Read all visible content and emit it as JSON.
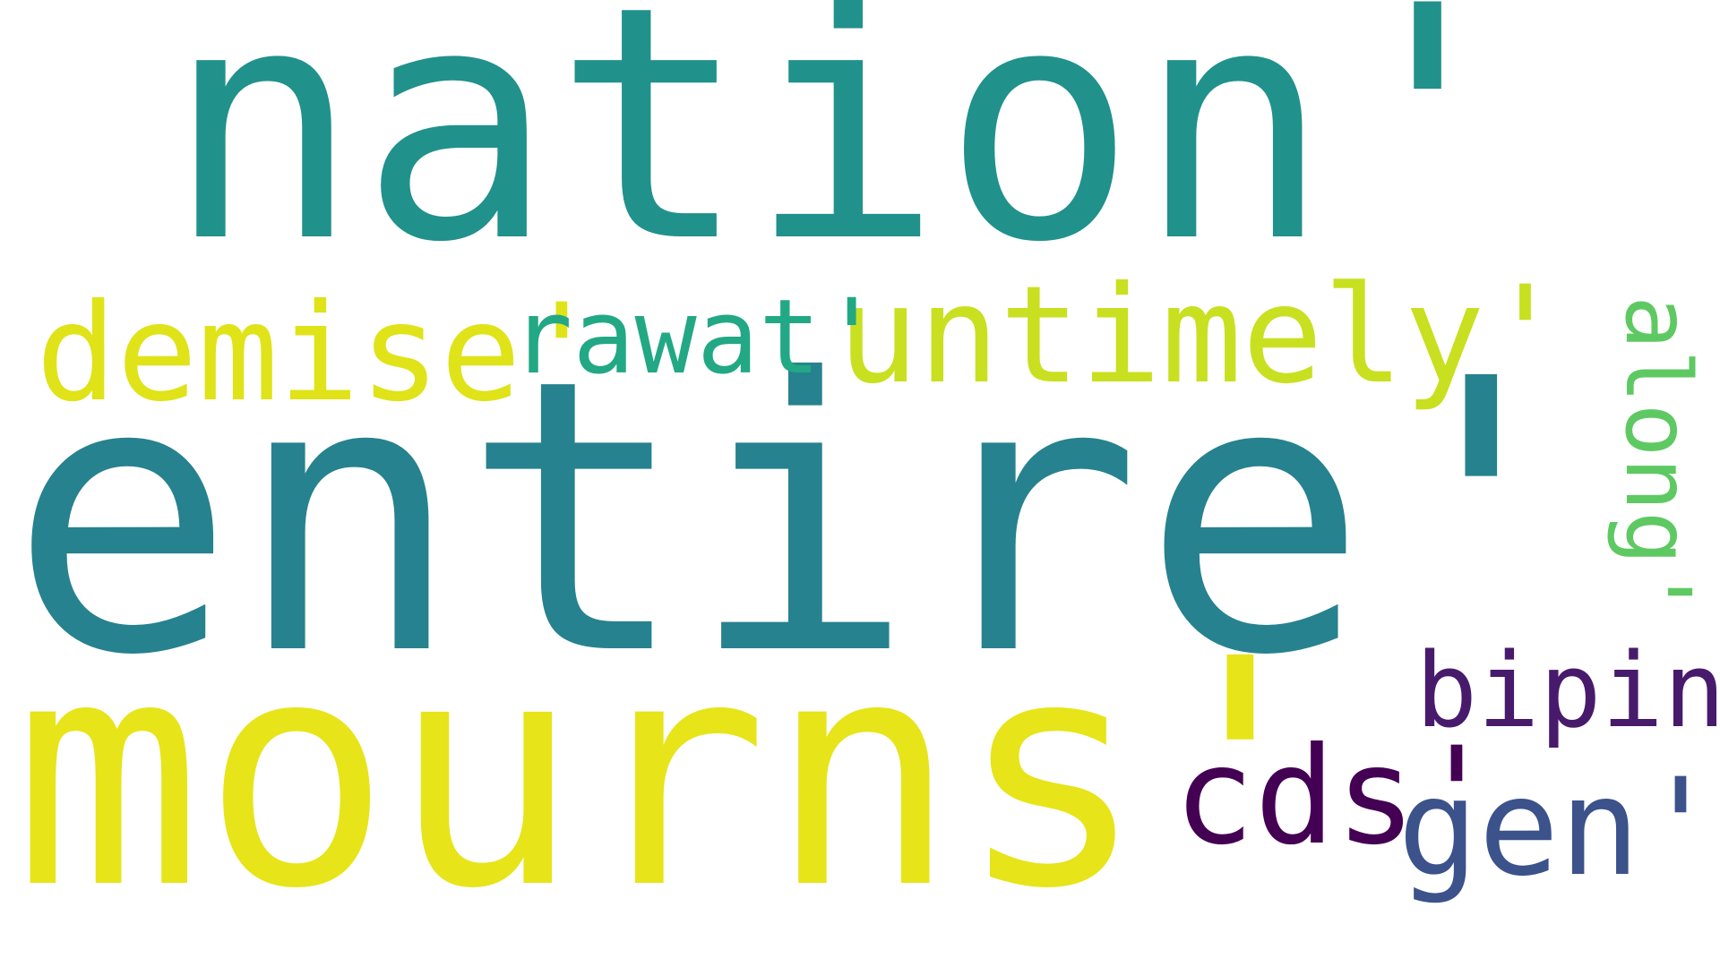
{
  "word_cloud": {
    "words": [
      {
        "id": "nation",
        "text": "nation'",
        "color": "#21918c"
      },
      {
        "id": "entire",
        "text": "entire'",
        "color": "#26828e"
      },
      {
        "id": "mourns",
        "text": "mourns'",
        "color": "#e7e419"
      },
      {
        "id": "untimely",
        "text": "untimely'",
        "color": "#c8e020"
      },
      {
        "id": "demise",
        "text": "demise'",
        "color": "#dfe318"
      },
      {
        "id": "rawat",
        "text": "rawat'",
        "color": "#22a884"
      },
      {
        "id": "cds",
        "text": "cds'",
        "color": "#440154"
      },
      {
        "id": "bipin",
        "text": "bipin'",
        "color": "#481a6c"
      },
      {
        "id": "gen",
        "text": "gen'",
        "color": "#3b528b"
      },
      {
        "id": "along",
        "text": "along'",
        "color": "#5ec962"
      }
    ],
    "background": "#ffffff"
  }
}
